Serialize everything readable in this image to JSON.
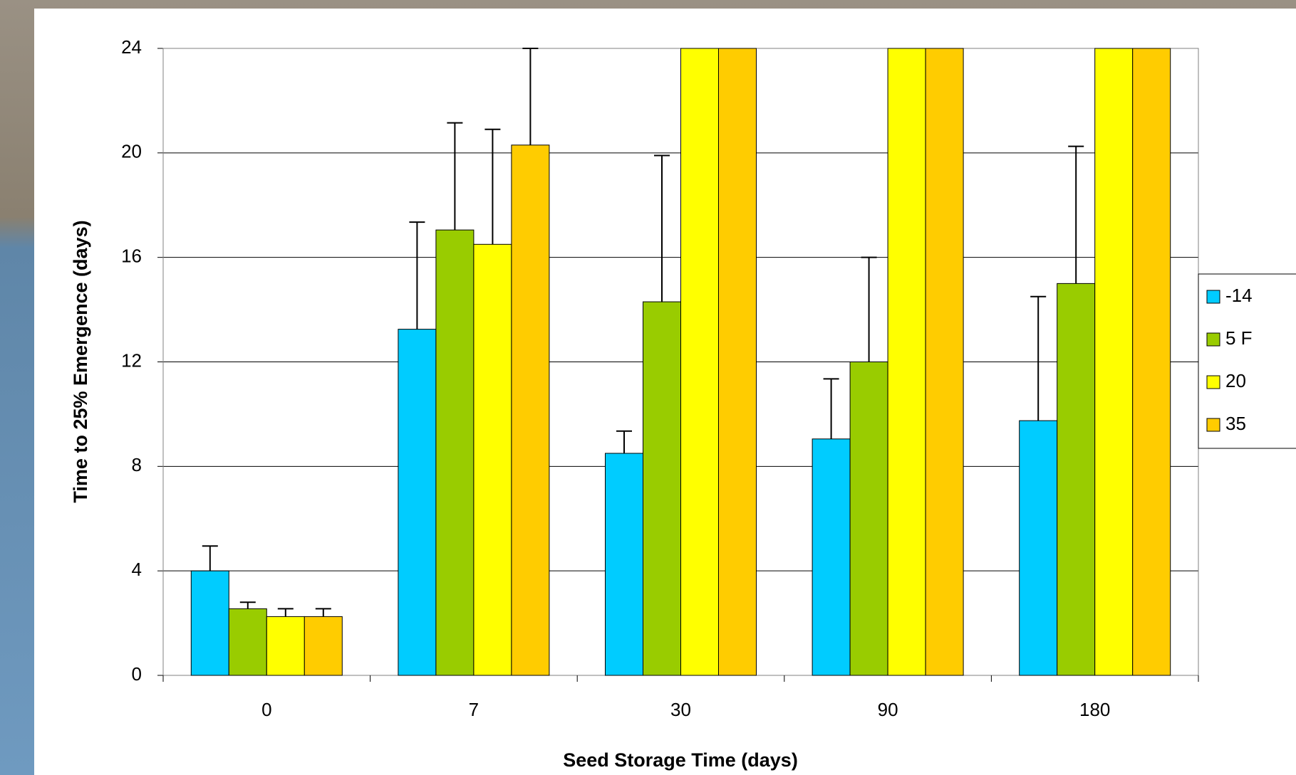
{
  "chart_data": {
    "type": "bar",
    "x_label": "Seed Storage Time (days)",
    "y_label": "Time to 25% Emergence (days)",
    "categories": [
      "0",
      "7",
      "30",
      "90",
      "180"
    ],
    "series": [
      {
        "name": "-14",
        "color": "#00ccff",
        "values": [
          4.0,
          13.25,
          8.5,
          9.05,
          9.75
        ],
        "errors": [
          0.95,
          4.1,
          0.85,
          2.3,
          4.75
        ]
      },
      {
        "name": "5 F",
        "color": "#99cc00",
        "values": [
          2.55,
          17.05,
          14.3,
          12.0,
          15.0
        ],
        "errors": [
          0.25,
          4.1,
          5.6,
          4.0,
          5.25
        ]
      },
      {
        "name": "20",
        "color": "#ffff00",
        "values": [
          2.25,
          16.5,
          24,
          24,
          24
        ],
        "errors": [
          0.3,
          4.4,
          null,
          null,
          null
        ]
      },
      {
        "name": "35",
        "color": "#ffcc00",
        "values": [
          2.25,
          20.3,
          24,
          24,
          24
        ],
        "errors": [
          0.3,
          3.7,
          null,
          null,
          null
        ]
      }
    ],
    "ylim": [
      0,
      24
    ],
    "yticks": [
      0,
      4,
      8,
      12,
      16,
      20,
      24
    ],
    "grid": true,
    "legend": "right"
  }
}
